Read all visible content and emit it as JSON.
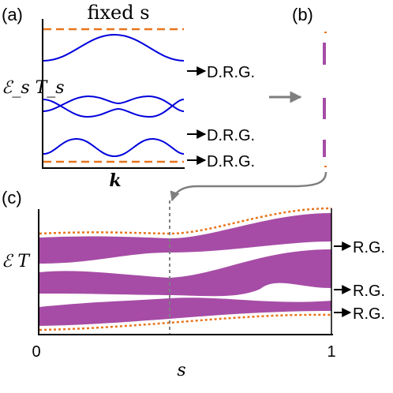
{
  "panels": {
    "a": {
      "label": "(a)",
      "title": "fixed s",
      "ylabel": "ℰ_s T_s",
      "xlabel": "k",
      "arrows": [
        "D.R.G.",
        "D.R.G.",
        "D.R.G."
      ]
    },
    "b": {
      "label": "(b)"
    },
    "c": {
      "label": "(c)",
      "ylabel": "ℰ T",
      "xlabel": "s",
      "xticks": [
        "0",
        "1"
      ],
      "arrows": [
        "R.G.",
        "R.G.",
        "R.G."
      ]
    }
  },
  "colors": {
    "band_line": "#0000dd",
    "band_fill": "#a64ca6",
    "boundary_dashed": "#e8741c",
    "guide_arrow": "#7f7f7f",
    "axis": "#000000"
  }
}
